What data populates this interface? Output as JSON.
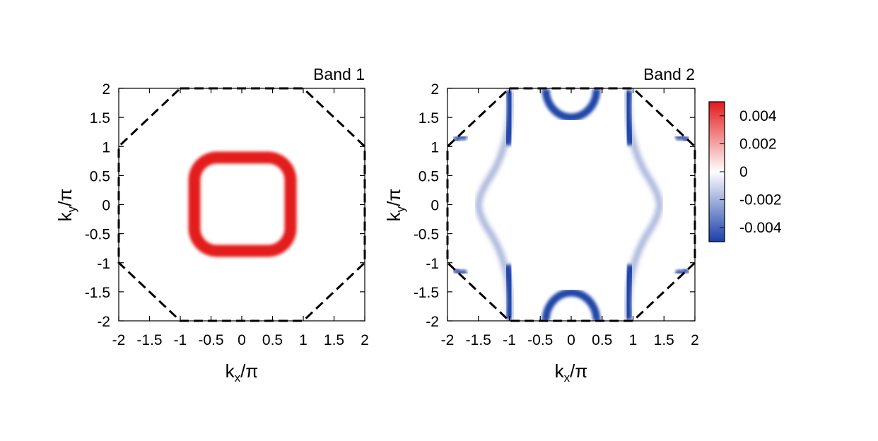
{
  "chart_data": [
    {
      "type": "heatmap",
      "title": "Band 1",
      "xlabel": {
        "main": "k",
        "sub": "x",
        "tail": "/π"
      },
      "ylabel": {
        "main": "k",
        "sub": "y",
        "tail": "/π"
      },
      "xlim": [
        -2,
        2
      ],
      "ylim": [
        -2,
        2
      ],
      "x_ticks": [
        "-2",
        "-1.5",
        "-1",
        "-0.5",
        "0",
        "0.5",
        "1",
        "1.5",
        "2"
      ],
      "y_ticks": [
        "2",
        "1.5",
        "1",
        "0.5",
        "0",
        "-0.5",
        "-1",
        "-1.5",
        "-2"
      ],
      "boundary": {
        "style": "dashed",
        "color": "#000000",
        "vertices": [
          [
            -1,
            2
          ],
          [
            1,
            2
          ],
          [
            2,
            1
          ],
          [
            2,
            -1
          ],
          [
            1,
            -2
          ],
          [
            -1,
            -2
          ],
          [
            -2,
            -1
          ],
          [
            -2,
            1
          ]
        ]
      },
      "features": [
        {
          "shape": "rounded-square-ring",
          "center": [
            0,
            0
          ],
          "half_width": 0.67,
          "half_height": 0.7,
          "value": 0.005,
          "color": "#e31a1c"
        }
      ]
    },
    {
      "type": "heatmap",
      "title": "Band 2",
      "xlabel": {
        "main": "k",
        "sub": "x",
        "tail": "/π"
      },
      "ylabel": {
        "main": "k",
        "sub": "y",
        "tail": "/π"
      },
      "xlim": [
        -2,
        2
      ],
      "ylim": [
        -2,
        2
      ],
      "x_ticks": [
        "-2",
        "-1.5",
        "-1",
        "-0.5",
        "0",
        "0.5",
        "1",
        "1.5",
        "2"
      ],
      "y_ticks": [
        "2",
        "1.5",
        "1",
        "0.5",
        "0",
        "-0.5",
        "-1",
        "-1.5",
        "-2"
      ],
      "boundary": {
        "style": "dashed",
        "color": "#000000",
        "vertices": [
          [
            -1,
            2
          ],
          [
            1,
            2
          ],
          [
            2,
            1
          ],
          [
            2,
            -1
          ],
          [
            1,
            -2
          ],
          [
            -1,
            -2
          ],
          [
            -2,
            -1
          ],
          [
            -2,
            1
          ]
        ]
      },
      "features": [
        {
          "shape": "arc",
          "center": [
            0,
            2
          ],
          "radius": 0.45,
          "value": -0.004
        },
        {
          "shape": "arc",
          "center": [
            0,
            -2
          ],
          "radius": 0.45,
          "value": -0.004
        },
        {
          "shape": "curve",
          "side": "left",
          "x_at_ky0": -1.45,
          "x_at_edges": -0.98,
          "value": -0.002
        },
        {
          "shape": "curve",
          "side": "right",
          "x_at_ky0": 1.45,
          "x_at_edges": 0.98,
          "value": -0.002
        },
        {
          "shape": "pocket",
          "center": [
            -1.8,
            1.1
          ],
          "value": -0.003
        },
        {
          "shape": "pocket",
          "center": [
            1.8,
            1.1
          ],
          "value": -0.003
        },
        {
          "shape": "pocket",
          "center": [
            -1.8,
            -1.1
          ],
          "value": -0.003
        },
        {
          "shape": "pocket",
          "center": [
            1.8,
            -1.1
          ],
          "value": -0.003
        }
      ]
    }
  ],
  "colorbar": {
    "ticks": [
      "0.004",
      "0.002",
      "0",
      "-0.002",
      "-0.004"
    ],
    "tick_values": [
      0.004,
      0.002,
      0,
      -0.002,
      -0.004
    ],
    "range": [
      -0.005,
      0.005
    ],
    "colors": {
      "max": "#e31a1c",
      "mid": "#ffffff",
      "min": "#1a3fa8"
    }
  }
}
